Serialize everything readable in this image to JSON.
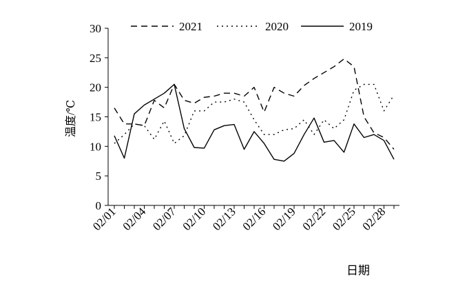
{
  "chart_data": {
    "type": "line",
    "title": "",
    "xlabel": "日期",
    "ylabel": "温度/℃",
    "ylim": [
      0,
      30
    ],
    "yticks": [
      0,
      5,
      10,
      15,
      20,
      25,
      30
    ],
    "x": [
      "02/01",
      "02/02",
      "02/03",
      "02/04",
      "02/05",
      "02/06",
      "02/07",
      "02/08",
      "02/09",
      "02/10",
      "02/11",
      "02/12",
      "02/13",
      "02/14",
      "02/15",
      "02/16",
      "02/17",
      "02/18",
      "02/19",
      "02/20",
      "02/21",
      "02/22",
      "02/23",
      "02/24",
      "02/25",
      "02/26",
      "02/27",
      "02/28",
      "02/29"
    ],
    "xtick_labels": [
      "02/01",
      "02/04",
      "02/07",
      "02/10",
      "02/13",
      "02/16",
      "02/19",
      "02/22",
      "02/25",
      "02/28"
    ],
    "legend_position": "top",
    "grid": false,
    "series": [
      {
        "name": "2021",
        "style": "dashed",
        "color": "#000000",
        "values": [
          16.5,
          13.8,
          13.8,
          13.5,
          17.8,
          16.5,
          20.5,
          17.8,
          17.3,
          18.3,
          18.5,
          19.0,
          19.0,
          18.5,
          20.0,
          15.8,
          20.0,
          19.0,
          18.5,
          20.3,
          21.5,
          22.5,
          23.5,
          24.8,
          23.5,
          15.0,
          12.3,
          11.5,
          9.5
        ]
      },
      {
        "name": "2020",
        "style": "dotted",
        "color": "#000000",
        "values": [
          10.5,
          12.0,
          13.8,
          13.5,
          11.2,
          14.3,
          10.5,
          11.8,
          16.0,
          16.0,
          17.5,
          17.5,
          18.0,
          17.5,
          14.5,
          12.0,
          12.0,
          12.8,
          13.0,
          14.5,
          12.0,
          14.5,
          13.0,
          14.5,
          19.5,
          20.5,
          20.5,
          16.0,
          18.7
        ]
      },
      {
        "name": "2019",
        "style": "solid",
        "color": "#000000",
        "values": [
          11.8,
          8.0,
          15.5,
          17.0,
          18.0,
          19.0,
          20.5,
          13.0,
          9.8,
          9.7,
          12.8,
          13.5,
          13.7,
          9.5,
          12.5,
          10.5,
          7.8,
          7.5,
          8.8,
          12.0,
          14.8,
          10.7,
          11.0,
          9.0,
          13.8,
          11.5,
          12.0,
          11.0,
          7.8
        ]
      }
    ]
  }
}
